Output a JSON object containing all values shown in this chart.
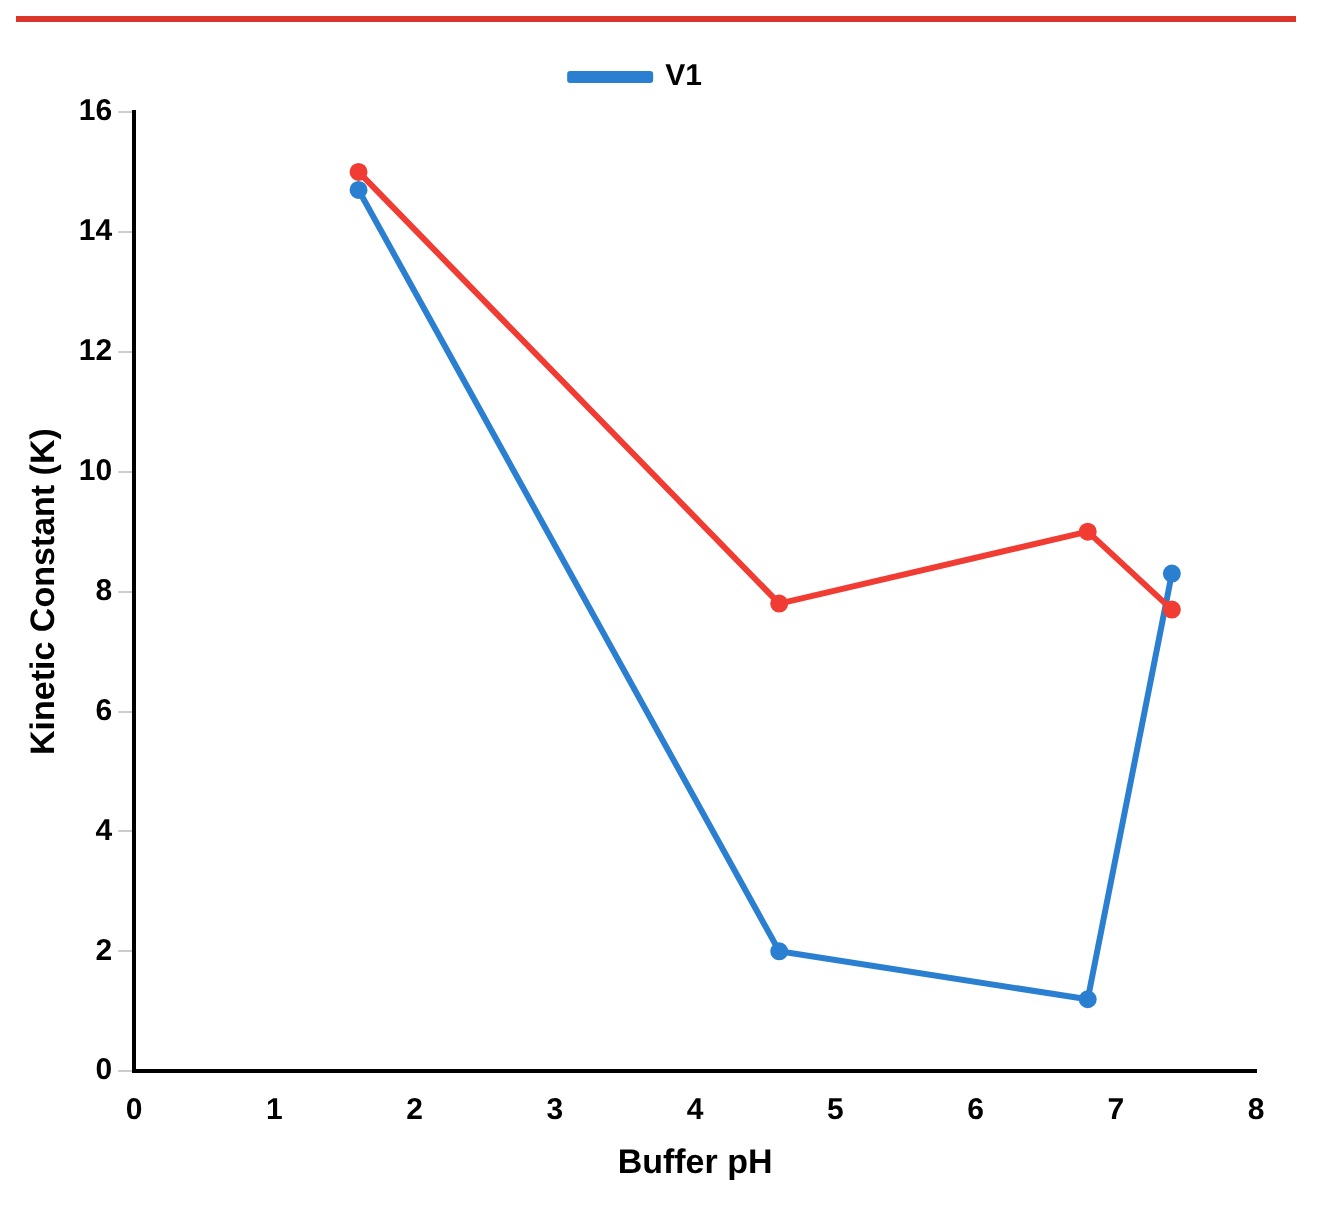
{
  "chart_data": {
    "type": "line",
    "xlabel": "Buffer pH",
    "ylabel": "Kinetic Constant (K)",
    "xlim": [
      0,
      8
    ],
    "xticks": [
      0,
      1,
      2,
      3,
      4,
      5,
      6,
      7,
      8
    ],
    "ylim": [
      0,
      16
    ],
    "yticks": [
      0,
      2,
      4,
      6,
      8,
      10,
      12,
      14,
      16
    ],
    "grid": false,
    "legend": "top",
    "marker": "circle",
    "line_style": "solid",
    "series": [
      {
        "color": "#f03c32",
        "x": [
          1.6,
          4.6,
          6.8,
          7.4
        ],
        "values": [
          15,
          7.8,
          9,
          7.7
        ]
      },
      {
        "name": "V1",
        "color": "#2a7fd0",
        "x": [
          1.6,
          4.6,
          6.8,
          7.4
        ],
        "values": [
          14.7,
          2,
          1.2,
          8.3
        ]
      }
    ]
  }
}
